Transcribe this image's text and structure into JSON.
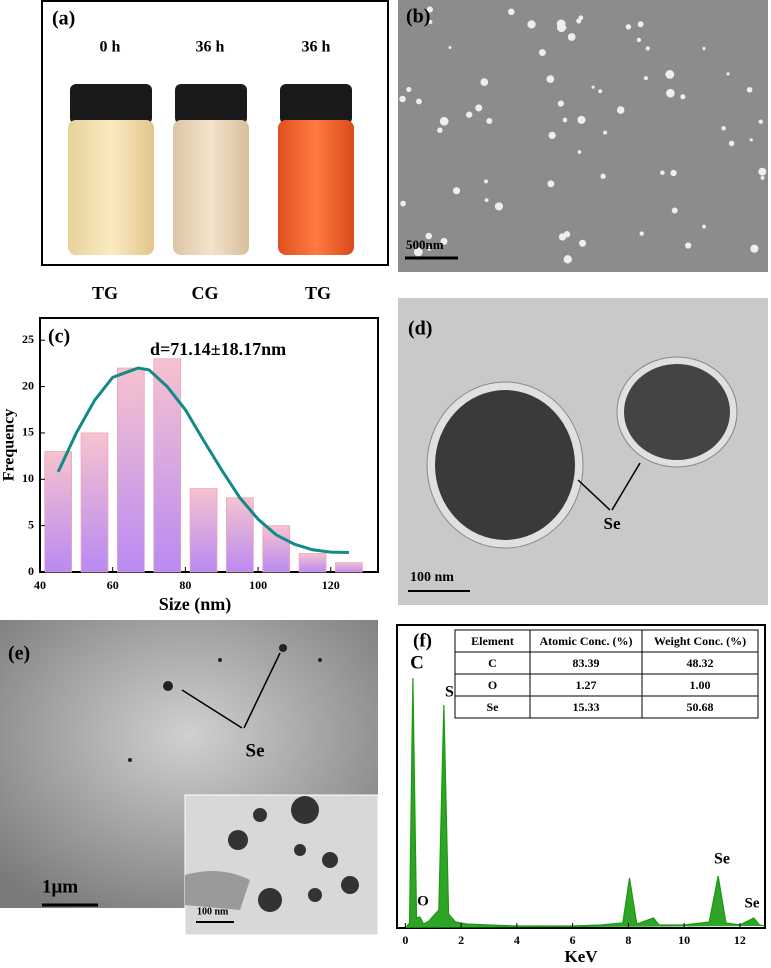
{
  "panels": {
    "a": {
      "label": "(a)",
      "times": [
        "0 h",
        "36 h",
        "36 h"
      ],
      "groups": [
        "TG",
        "CG",
        "TG"
      ]
    },
    "b": {
      "label": "(b)",
      "scale": "500nm"
    },
    "d": {
      "label": "(d)",
      "arrow_label": "Se",
      "scale": "100 nm"
    },
    "e": {
      "label": "(e)",
      "arrow_label": "Se",
      "scale": "1μm",
      "inset_scale": "100 nm"
    },
    "f": {
      "label": "(f)",
      "table": {
        "header": [
          "Element",
          "Atomic Conc. (%)",
          "Weight Conc. (%)"
        ],
        "rows": [
          [
            "C",
            "83.39",
            "48.32"
          ],
          [
            "O",
            "1.27",
            "1.00"
          ],
          [
            "Se",
            "15.33",
            "50.68"
          ]
        ]
      }
    }
  },
  "chart_data": [
    {
      "type": "bar",
      "label": "(c)",
      "annotation": "d=71.14±18.17nm",
      "xlabel": "Size (nm)",
      "ylabel": "Frequency",
      "x": [
        45,
        55,
        65,
        75,
        85,
        95,
        105,
        115,
        125
      ],
      "values": [
        13,
        15,
        22,
        23,
        9,
        8,
        5,
        2,
        1
      ],
      "fit": {
        "color": "#128a85",
        "x": [
          45,
          50,
          55,
          60,
          67,
          70,
          75,
          80,
          85,
          90,
          95,
          100,
          105,
          110,
          115,
          120,
          125
        ],
        "values": [
          10.8,
          15,
          18.5,
          21,
          22,
          21.8,
          20,
          17.5,
          14.2,
          11,
          8,
          5.7,
          4,
          3,
          2.4,
          2.15,
          2.1
        ]
      },
      "xlim": [
        40,
        133
      ],
      "ylim": [
        0,
        27.4
      ],
      "xticks": [
        40,
        60,
        80,
        100,
        120
      ],
      "yticks": [
        0,
        5,
        10,
        15,
        20,
        25
      ]
    },
    {
      "type": "line",
      "xlabel": "KeV",
      "color": "#1a9a10",
      "peak_labels": [
        "C",
        "O",
        "Se",
        "Se",
        "Se"
      ],
      "x": [
        0,
        0.15,
        0.27,
        0.4,
        0.52,
        0.65,
        0.85,
        1.0,
        1.2,
        1.38,
        1.55,
        1.8,
        2.2,
        3,
        4,
        5,
        6,
        7,
        7.8,
        8.04,
        8.3,
        8.9,
        9.1,
        10,
        10.9,
        11.22,
        11.5,
        12,
        12.5,
        12.7,
        12.9
      ],
      "values": [
        0,
        5,
        250,
        10,
        11,
        4,
        7,
        12,
        18,
        223,
        14,
        6,
        4,
        3,
        2,
        2,
        2,
        3,
        5,
        50,
        4,
        10,
        3,
        3,
        6,
        52,
        5,
        3,
        10,
        3,
        2
      ],
      "xlim": [
        -0.3,
        12.9
      ],
      "ylim": [
        0,
        303
      ],
      "xticks": [
        0,
        2,
        4,
        6,
        8,
        10,
        12
      ]
    }
  ]
}
